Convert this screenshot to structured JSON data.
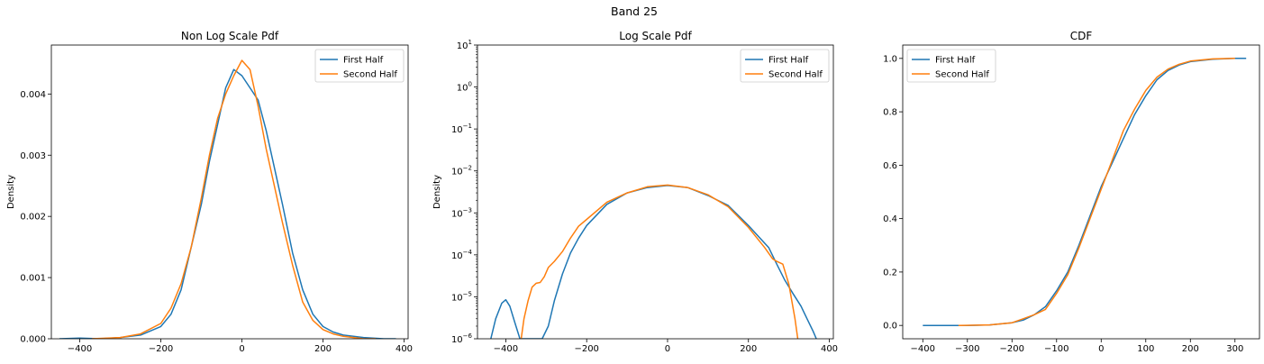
{
  "suptitle": "Band 25",
  "chart_data": [
    {
      "type": "line",
      "title": "Non Log Scale Pdf",
      "xlabel": "",
      "ylabel": "Density",
      "xlim": [
        -470,
        410
      ],
      "ylim": [
        0,
        0.0048
      ],
      "xticks": [
        -400,
        -200,
        0,
        200,
        400
      ],
      "yticks": [
        0,
        0.001,
        0.002,
        0.003,
        0.004
      ],
      "yticklabels": [
        "0.000",
        "0.001",
        "0.002",
        "0.003",
        "0.004"
      ],
      "legend": "upper right",
      "series": [
        {
          "name": "First Half",
          "color": "#1f77b4",
          "x": [
            -450,
            -400,
            -350,
            -300,
            -250,
            -200,
            -175,
            -150,
            -125,
            -100,
            -80,
            -60,
            -40,
            -20,
            0,
            20,
            40,
            60,
            80,
            100,
            125,
            150,
            175,
            200,
            225,
            250,
            300,
            350,
            380
          ],
          "y": [
            0,
            1e-05,
            0,
            2e-05,
            6e-05,
            0.0002,
            0.0004,
            0.0008,
            0.0015,
            0.0022,
            0.0029,
            0.0035,
            0.0041,
            0.0044,
            0.0043,
            0.0041,
            0.0039,
            0.0034,
            0.0028,
            0.0022,
            0.0014,
            0.0008,
            0.0004,
            0.0002,
            0.00011,
            6e-05,
            2e-05,
            0,
            0
          ]
        },
        {
          "name": "Second Half",
          "color": "#ff7f0e",
          "x": [
            -370,
            -300,
            -250,
            -200,
            -175,
            -150,
            -125,
            -100,
            -80,
            -60,
            -40,
            -20,
            0,
            20,
            40,
            60,
            80,
            100,
            125,
            150,
            175,
            200,
            225,
            250,
            300,
            330
          ],
          "y": [
            0,
            2e-05,
            8e-05,
            0.00025,
            0.0005,
            0.0009,
            0.0015,
            0.0023,
            0.003,
            0.0036,
            0.004,
            0.0043,
            0.00455,
            0.0044,
            0.0038,
            0.0031,
            0.0025,
            0.0019,
            0.0012,
            0.0006,
            0.0003,
            0.00015,
            8e-05,
            4e-05,
            0,
            0
          ]
        }
      ]
    },
    {
      "type": "line",
      "title": "Log Scale Pdf",
      "xlabel": "",
      "ylabel": "Density",
      "yscale": "log",
      "xlim": [
        -470,
        410
      ],
      "ylim": [
        1e-06,
        10
      ],
      "xticks": [
        -400,
        -200,
        0,
        200,
        400
      ],
      "yticks": [
        1e-06,
        1e-05,
        0.0001,
        0.001,
        0.01,
        0.1,
        1,
        10
      ],
      "yticklabels": [
        {
          "base": "10",
          "exp": "−6"
        },
        {
          "base": "10",
          "exp": "−5"
        },
        {
          "base": "10",
          "exp": "−4"
        },
        {
          "base": "10",
          "exp": "−3"
        },
        {
          "base": "10",
          "exp": "−2"
        },
        {
          "base": "10",
          "exp": "−1"
        },
        {
          "base": "10",
          "exp": "0"
        },
        {
          "base": "10",
          "exp": "1"
        }
      ],
      "legend": "upper right",
      "series": [
        {
          "name": "First Half",
          "color": "#1f77b4",
          "x": [
            -437,
            -425,
            -410,
            -400,
            -390,
            -378,
            -365,
            -340,
            -310,
            -295,
            -280,
            -260,
            -240,
            -220,
            -200,
            -150,
            -100,
            -50,
            0,
            50,
            100,
            150,
            200,
            250,
            270,
            290,
            310,
            330,
            345,
            360,
            368
          ],
          "y": [
            1e-06,
            3e-06,
            7e-06,
            8.5e-06,
            6e-06,
            2.5e-06,
            1e-06,
            1e-06,
            1e-06,
            2e-06,
            8e-06,
            3.5e-05,
            0.00011,
            0.00025,
            0.0005,
            0.0016,
            0.003,
            0.004,
            0.0045,
            0.004,
            0.0026,
            0.0015,
            0.0005,
            0.00015,
            6e-05,
            2.5e-05,
            1.2e-05,
            6e-06,
            3e-06,
            1.5e-06,
            1e-06
          ]
        },
        {
          "name": "Second Half",
          "color": "#ff7f0e",
          "x": [
            -362,
            -355,
            -345,
            -335,
            -325,
            -315,
            -305,
            -295,
            -280,
            -260,
            -240,
            -220,
            -200,
            -150,
            -100,
            -50,
            0,
            50,
            100,
            150,
            200,
            240,
            260,
            270,
            285,
            300,
            315,
            322
          ],
          "y": [
            1e-06,
            3e-06,
            8e-06,
            1.7e-05,
            2.1e-05,
            2.2e-05,
            3e-05,
            5e-05,
            7e-05,
            0.00012,
            0.00025,
            0.00048,
            0.0007,
            0.0018,
            0.003,
            0.0042,
            0.0046,
            0.004,
            0.0027,
            0.0014,
            0.00045,
            0.00015,
            8e-05,
            7e-05,
            6e-05,
            2e-05,
            3e-06,
            1e-06
          ]
        }
      ]
    },
    {
      "type": "line",
      "title": "CDF",
      "xlabel": "",
      "ylabel": "",
      "xlim": [
        -445,
        355
      ],
      "ylim": [
        -0.05,
        1.05
      ],
      "xticks": [
        -400,
        -300,
        -200,
        -100,
        0,
        100,
        200,
        300
      ],
      "yticks": [
        0,
        0.2,
        0.4,
        0.6,
        0.8,
        1.0
      ],
      "yticklabels": [
        "0.0",
        "0.2",
        "0.4",
        "0.6",
        "0.8",
        "1.0"
      ],
      "legend": "upper left",
      "series": [
        {
          "name": "First Half",
          "color": "#1f77b4",
          "x": [
            -400,
            -300,
            -250,
            -200,
            -175,
            -150,
            -125,
            -100,
            -75,
            -50,
            -25,
            0,
            25,
            50,
            75,
            100,
            125,
            150,
            175,
            200,
            250,
            300,
            325
          ],
          "y": [
            0,
            0,
            0.002,
            0.01,
            0.02,
            0.04,
            0.07,
            0.13,
            0.2,
            0.3,
            0.41,
            0.52,
            0.61,
            0.7,
            0.79,
            0.86,
            0.92,
            0.955,
            0.975,
            0.988,
            0.997,
            1,
            1
          ]
        },
        {
          "name": "Second Half",
          "color": "#ff7f0e",
          "x": [
            -320,
            -250,
            -200,
            -175,
            -150,
            -125,
            -100,
            -75,
            -50,
            -25,
            0,
            25,
            50,
            75,
            100,
            125,
            150,
            175,
            200,
            250,
            300
          ],
          "y": [
            0,
            0.002,
            0.01,
            0.025,
            0.04,
            0.06,
            0.12,
            0.19,
            0.29,
            0.4,
            0.51,
            0.62,
            0.73,
            0.81,
            0.88,
            0.93,
            0.96,
            0.978,
            0.99,
            0.998,
            1
          ]
        }
      ]
    }
  ]
}
